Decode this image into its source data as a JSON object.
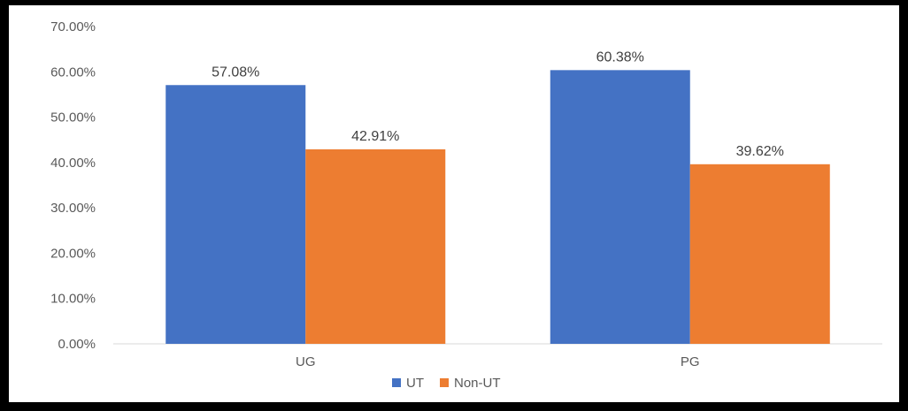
{
  "chart_data": {
    "type": "bar",
    "categories": [
      "UG",
      "PG"
    ],
    "series": [
      {
        "name": "UT",
        "values": [
          57.08,
          60.38
        ],
        "labels": [
          "57.08%",
          "60.38%"
        ],
        "color": "#4472C4"
      },
      {
        "name": "Non-UT",
        "values": [
          42.91,
          39.62
        ],
        "labels": [
          "42.91%",
          "39.62%"
        ],
        "color": "#ED7D31"
      }
    ],
    "ylim": [
      0,
      70
    ],
    "yticks": [
      "0.00%",
      "10.00%",
      "20.00%",
      "30.00%",
      "40.00%",
      "50.00%",
      "60.00%",
      "70.00%"
    ],
    "grid": false,
    "legend_position": "bottom"
  }
}
